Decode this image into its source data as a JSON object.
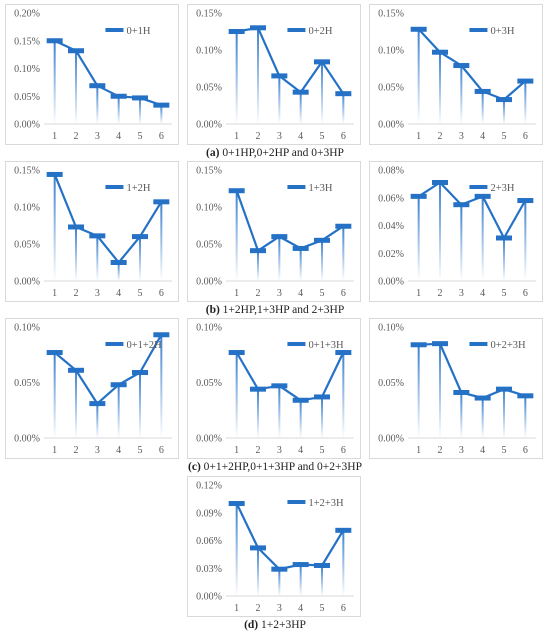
{
  "chart_data": [
    {
      "type": "line",
      "legend": "0+1H",
      "categories": [
        "1",
        "2",
        "3",
        "4",
        "5",
        "6"
      ],
      "values": [
        0.15,
        0.132,
        0.069,
        0.05,
        0.047,
        0.034
      ],
      "ylim": [
        0,
        0.2
      ],
      "yticks": [
        "0.00%",
        "0.05%",
        "0.10%",
        "0.15%",
        "0.20%"
      ],
      "color": "#2471c6"
    },
    {
      "type": "line",
      "legend": "0+2H",
      "categories": [
        "1",
        "2",
        "3",
        "4",
        "5",
        "6"
      ],
      "values": [
        0.125,
        0.13,
        0.065,
        0.043,
        0.084,
        0.041
      ],
      "ylim": [
        0,
        0.15
      ],
      "yticks": [
        "0.00%",
        "0.05%",
        "0.10%",
        "0.15%"
      ],
      "color": "#2471c6"
    },
    {
      "type": "line",
      "legend": "0+3H",
      "categories": [
        "1",
        "2",
        "3",
        "4",
        "5",
        "6"
      ],
      "values": [
        0.128,
        0.097,
        0.079,
        0.044,
        0.033,
        0.058
      ],
      "ylim": [
        0,
        0.15
      ],
      "yticks": [
        "0.00%",
        "0.05%",
        "0.10%",
        "0.15%"
      ],
      "color": "#2471c6"
    },
    {
      "type": "line",
      "legend": "1+2H",
      "categories": [
        "1",
        "2",
        "3",
        "4",
        "5",
        "6"
      ],
      "values": [
        0.144,
        0.073,
        0.061,
        0.025,
        0.06,
        0.107
      ],
      "ylim": [
        0,
        0.15
      ],
      "yticks": [
        "0.00%",
        "0.05%",
        "0.10%",
        "0.15%"
      ],
      "color": "#2471c6"
    },
    {
      "type": "line",
      "legend": "1+3H",
      "categories": [
        "1",
        "2",
        "3",
        "4",
        "5",
        "6"
      ],
      "values": [
        0.122,
        0.041,
        0.06,
        0.044,
        0.055,
        0.074
      ],
      "ylim": [
        0,
        0.15
      ],
      "yticks": [
        "0.00%",
        "0.05%",
        "0.10%",
        "0.15%"
      ],
      "color": "#2471c6"
    },
    {
      "type": "line",
      "legend": "2+3H",
      "categories": [
        "1",
        "2",
        "3",
        "4",
        "5",
        "6"
      ],
      "values": [
        0.061,
        0.071,
        0.055,
        0.061,
        0.031,
        0.058
      ],
      "ylim": [
        0,
        0.08
      ],
      "yticks": [
        "0.00%",
        "0.02%",
        "0.04%",
        "0.06%",
        "0.08%"
      ],
      "color": "#2471c6"
    },
    {
      "type": "line",
      "legend": "0+1+2H",
      "categories": [
        "1",
        "2",
        "3",
        "4",
        "5",
        "6"
      ],
      "values": [
        0.077,
        0.061,
        0.031,
        0.048,
        0.059,
        0.093
      ],
      "ylim": [
        0,
        0.1
      ],
      "yticks": [
        "0.00%",
        "0.05%",
        "0.10%"
      ],
      "color": "#2471c6"
    },
    {
      "type": "line",
      "legend": "0+1+3H",
      "categories": [
        "1",
        "2",
        "3",
        "4",
        "5",
        "6"
      ],
      "values": [
        0.077,
        0.044,
        0.047,
        0.034,
        0.037,
        0.077
      ],
      "ylim": [
        0,
        0.1
      ],
      "yticks": [
        "0.00%",
        "0.05%",
        "0.10%"
      ],
      "color": "#2471c6"
    },
    {
      "type": "line",
      "legend": "0+2+3H",
      "categories": [
        "1",
        "2",
        "3",
        "4",
        "5",
        "6"
      ],
      "values": [
        0.084,
        0.085,
        0.041,
        0.036,
        0.044,
        0.038
      ],
      "ylim": [
        0,
        0.1
      ],
      "yticks": [
        "0.00%",
        "0.05%",
        "0.10%"
      ],
      "color": "#2471c6"
    },
    {
      "type": "line",
      "legend": "1+2+3H",
      "categories": [
        "1",
        "2",
        "3",
        "4",
        "5",
        "6"
      ],
      "values": [
        0.1,
        0.052,
        0.029,
        0.034,
        0.033,
        0.071
      ],
      "ylim": [
        0,
        0.12
      ],
      "yticks": [
        "0.00%",
        "0.03%",
        "0.06%",
        "0.09%",
        "0.12%"
      ],
      "color": "#2471c6"
    }
  ],
  "captions": [
    {
      "label": "(a)",
      "text": "0+1HP,0+2HP and 0+3HP"
    },
    {
      "label": "(b)",
      "text": "1+2HP,1+3HP and 2+3HP"
    },
    {
      "label": "(c)",
      "text": "0+1+2HP,0+1+3HP and 0+2+3HP"
    },
    {
      "label": "(d)",
      "text": "1+2+3HP"
    }
  ]
}
